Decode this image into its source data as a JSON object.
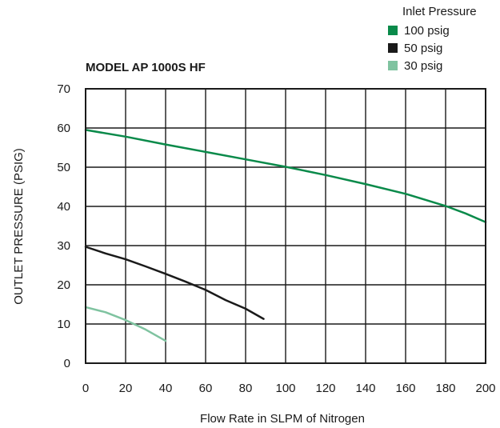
{
  "chart_data": {
    "type": "line",
    "title": "MODEL AP 1000S HF",
    "xlabel": "Flow Rate in SLPM of Nitrogen",
    "ylabel": "OUTLET PRESSURE (PSIG)",
    "xlim": [
      0,
      200
    ],
    "ylim": [
      0,
      70
    ],
    "xticks": [
      0,
      20,
      40,
      60,
      80,
      100,
      120,
      140,
      160,
      180,
      200
    ],
    "yticks": [
      0,
      10,
      20,
      30,
      40,
      50,
      60,
      70
    ],
    "grid": true,
    "legend": {
      "title": "Inlet Pressure",
      "placement": "top-right"
    },
    "series": [
      {
        "name": "100 psig",
        "color": "#0a8a4a",
        "x": [
          0,
          20,
          40,
          60,
          80,
          100,
          120,
          140,
          160,
          180,
          190,
          200
        ],
        "y": [
          59.5,
          57.8,
          55.8,
          53.9,
          52.0,
          50.1,
          48.0,
          45.7,
          43.2,
          40.1,
          38.2,
          36.0
        ]
      },
      {
        "name": "50 psig",
        "color": "#1a1a1a",
        "x": [
          0,
          10,
          20,
          30,
          40,
          50,
          60,
          70,
          80,
          89
        ],
        "y": [
          29.7,
          28.0,
          26.5,
          24.7,
          22.8,
          20.8,
          18.7,
          16.1,
          13.9,
          11.3
        ]
      },
      {
        "name": "30 psig",
        "color": "#7fc3a0",
        "x": [
          0,
          10,
          20,
          30,
          40
        ],
        "y": [
          14.3,
          13.0,
          11.0,
          8.6,
          5.7
        ]
      }
    ]
  }
}
